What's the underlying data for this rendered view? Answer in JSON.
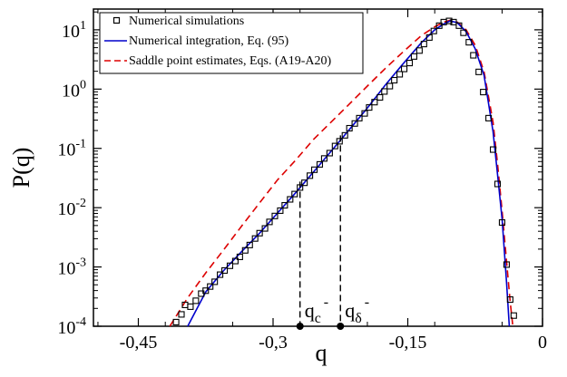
{
  "chart_data": {
    "type": "scatter",
    "xlabel": "q",
    "ylabel": "P(q)",
    "xlim": [
      -0.5,
      0
    ],
    "ylim_log10": [
      -4,
      1.35
    ],
    "log_y": true,
    "x_ticks": [
      -0.45,
      -0.3,
      -0.15,
      0
    ],
    "x_tick_labels": [
      "-0,45",
      "-0,3",
      "-0,15",
      "0"
    ],
    "y_ticks": [
      -4,
      -3,
      -2,
      -1,
      0,
      1
    ],
    "y_tick_base": "10",
    "y_tick_exps": [
      "-4",
      "-3",
      "-2",
      "-1",
      "0",
      "1"
    ],
    "legend_position": "top-left",
    "series": [
      {
        "name": "Numerical simulations",
        "style": "squares",
        "color": "#000000",
        "x": [
          -0.408,
          -0.402,
          -0.398,
          -0.392,
          -0.386,
          -0.38,
          -0.375,
          -0.37,
          -0.365,
          -0.359,
          -0.354,
          -0.348,
          -0.342,
          -0.337,
          -0.331,
          -0.326,
          -0.32,
          -0.315,
          -0.309,
          -0.304,
          -0.298,
          -0.292,
          -0.287,
          -0.281,
          -0.276,
          -0.27,
          -0.265,
          -0.259,
          -0.254,
          -0.248,
          -0.243,
          -0.237,
          -0.231,
          -0.226,
          -0.22,
          -0.215,
          -0.209,
          -0.204,
          -0.198,
          -0.193,
          -0.187,
          -0.181,
          -0.176,
          -0.17,
          -0.165,
          -0.159,
          -0.154,
          -0.148,
          -0.143,
          -0.137,
          -0.132,
          -0.126,
          -0.121,
          -0.115,
          -0.11,
          -0.104,
          -0.099,
          -0.093,
          -0.088,
          -0.082,
          -0.077,
          -0.071,
          -0.066,
          -0.06,
          -0.055,
          -0.05,
          -0.045,
          -0.04,
          -0.036,
          -0.032
        ],
        "log10_y": [
          -3.93,
          -3.8,
          -3.64,
          -3.67,
          -3.57,
          -3.45,
          -3.4,
          -3.33,
          -3.25,
          -3.13,
          -3.06,
          -2.98,
          -2.9,
          -2.83,
          -2.72,
          -2.63,
          -2.52,
          -2.43,
          -2.35,
          -2.24,
          -2.14,
          -2.05,
          -1.96,
          -1.86,
          -1.77,
          -1.66,
          -1.58,
          -1.46,
          -1.36,
          -1.27,
          -1.17,
          -1.08,
          -0.96,
          -0.88,
          -0.78,
          -0.66,
          -0.58,
          -0.49,
          -0.41,
          -0.31,
          -0.22,
          -0.14,
          -0.04,
          0.05,
          0.15,
          0.25,
          0.34,
          0.44,
          0.55,
          0.65,
          0.76,
          0.87,
          0.98,
          1.07,
          1.13,
          1.15,
          1.13,
          1.07,
          0.95,
          0.79,
          0.57,
          0.29,
          -0.05,
          -0.49,
          -1.02,
          -1.6,
          -2.25,
          -2.96,
          -3.55,
          -3.82
        ]
      },
      {
        "name": "Numerical integration, Eq. (95)",
        "style": "solid",
        "color": "#0000cc",
        "x": [
          -0.395,
          -0.375,
          -0.355,
          -0.335,
          -0.315,
          -0.295,
          -0.275,
          -0.255,
          -0.235,
          -0.215,
          -0.195,
          -0.175,
          -0.155,
          -0.135,
          -0.12,
          -0.11,
          -0.103,
          -0.095,
          -0.085,
          -0.075,
          -0.065,
          -0.055,
          -0.05,
          -0.045,
          -0.04,
          -0.037
        ],
        "log10_y": [
          -4.0,
          -3.42,
          -3.06,
          -2.74,
          -2.43,
          -2.09,
          -1.75,
          -1.4,
          -1.04,
          -0.68,
          -0.32,
          0.07,
          0.43,
          0.78,
          1.0,
          1.1,
          1.15,
          1.12,
          0.97,
          0.68,
          0.23,
          -0.72,
          -1.45,
          -2.2,
          -3.27,
          -4.0
        ]
      },
      {
        "name": "Saddle point estimates, Eqs. (A19-A20)",
        "style": "dashed",
        "color": "#dd0000",
        "x": [
          -0.415,
          -0.395,
          -0.375,
          -0.355,
          -0.335,
          -0.315,
          -0.295,
          -0.275,
          -0.255,
          -0.235,
          -0.215,
          -0.195,
          -0.175,
          -0.155,
          -0.135,
          -0.12,
          -0.11,
          -0.103,
          -0.095,
          -0.085,
          -0.075,
          -0.065,
          -0.055,
          -0.05,
          -0.045,
          -0.04,
          -0.036,
          -0.033
        ],
        "log10_y": [
          -4.0,
          -3.52,
          -3.1,
          -2.71,
          -2.31,
          -1.92,
          -1.53,
          -1.2,
          -0.85,
          -0.55,
          -0.25,
          0.05,
          0.35,
          0.63,
          0.9,
          1.05,
          1.13,
          1.16,
          1.13,
          1.0,
          0.74,
          0.29,
          -0.56,
          -1.27,
          -2.06,
          -2.91,
          -3.59,
          -4.0
        ]
      }
    ],
    "annotations": [
      {
        "x": -0.27,
        "log10_y_top": -1.56,
        "label": "q",
        "sub": "c",
        "sup": "-"
      },
      {
        "x": -0.225,
        "log10_y_top": -0.78,
        "label": "q",
        "sub": "δ",
        "sup": "-"
      }
    ]
  }
}
